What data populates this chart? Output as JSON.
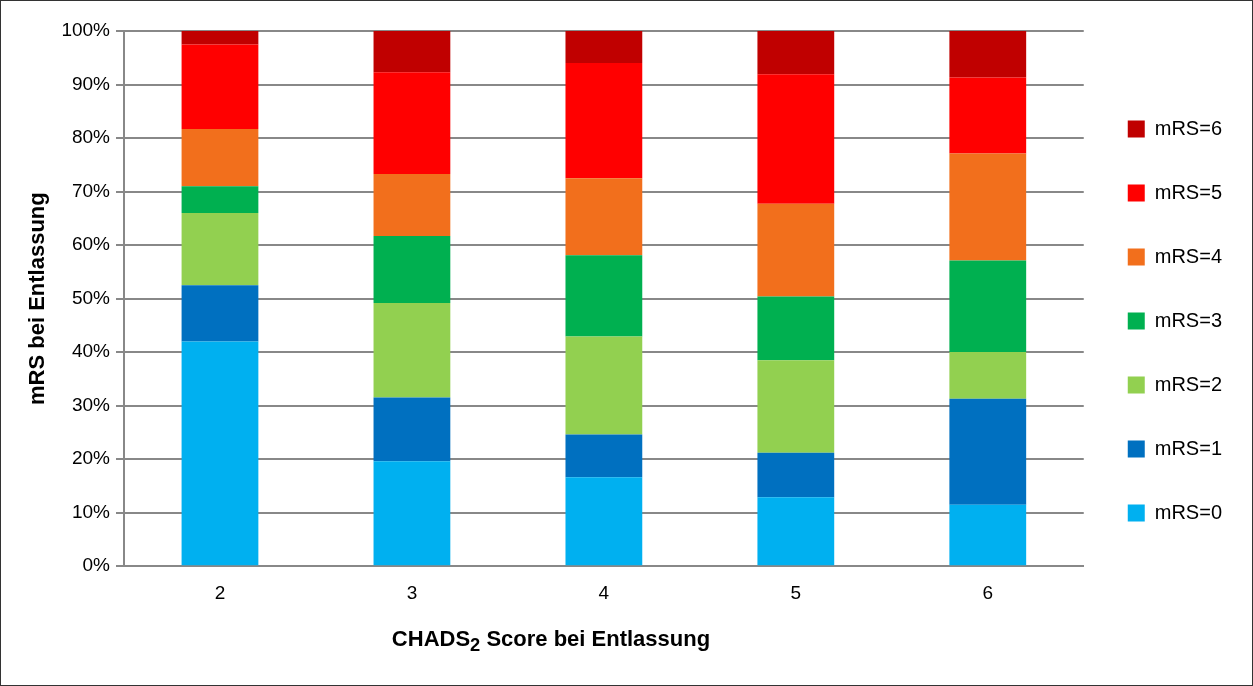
{
  "chart_data": {
    "type": "bar",
    "stacked": true,
    "xlabel": "CHADS$_{2}$ Score bei Entlassung",
    "ylabel": "mRS bei Entlassung",
    "categories": [
      "2",
      "3",
      "4",
      "5",
      "6"
    ],
    "series": [
      {
        "name": "mRS=0",
        "color": "#00b0f0",
        "values": [
          42,
          19.6,
          16.6,
          12.9,
          11.5
        ]
      },
      {
        "name": "mRS=1",
        "color": "#0070c0",
        "values": [
          10.5,
          11.9,
          8,
          8.3,
          19.8
        ]
      },
      {
        "name": "mRS=2",
        "color": "#92d050",
        "values": [
          13.5,
          17.7,
          18.3,
          17.3,
          8.7
        ]
      },
      {
        "name": "mRS=3",
        "color": "#00b050",
        "values": [
          5,
          12.5,
          15.2,
          11.9,
          17.1
        ]
      },
      {
        "name": "mRS=4",
        "color": "#f26f1c",
        "values": [
          10.7,
          11.6,
          14.4,
          17.3,
          20
        ]
      },
      {
        "name": "mRS=5",
        "color": "#ff0000",
        "values": [
          15.8,
          19,
          21.5,
          24.2,
          14.2
        ]
      },
      {
        "name": "mRS=6",
        "color": "#c00000",
        "values": [
          2.5,
          7.7,
          6,
          8.1,
          8.7
        ]
      }
    ],
    "ylim": [
      0,
      100
    ],
    "yticks": [
      {
        "value": 0,
        "label": "0%"
      },
      {
        "value": 10,
        "label": "10%"
      },
      {
        "value": 20,
        "label": "20%"
      },
      {
        "value": 30,
        "label": "30%"
      },
      {
        "value": 40,
        "label": "40%"
      },
      {
        "value": 50,
        "label": "50%"
      },
      {
        "value": 60,
        "label": "60%"
      },
      {
        "value": 70,
        "label": "70%"
      },
      {
        "value": 80,
        "label": "80%"
      },
      {
        "value": 90,
        "label": "90%"
      },
      {
        "value": 100,
        "label": "100%"
      }
    ],
    "grid": "y",
    "legend": "right"
  }
}
